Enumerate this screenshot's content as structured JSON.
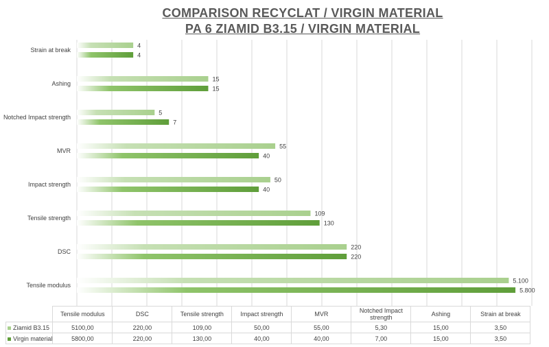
{
  "title": [
    "COMPARISON RECYCLAT / VIRGIN MATERIAL",
    "PA 6 ZIAMID B3.15 / VIRGIN MATERIAL"
  ],
  "chart_data": {
    "type": "bar",
    "orientation": "horizontal",
    "x_scale": "log",
    "grid": "vertical gridlines",
    "legend": "data table below chart",
    "categories": [
      "Tensile modulus",
      "DSC",
      "Tensile strength",
      "Impact strength",
      "MVR",
      "Notched Impact strength",
      "Ashing",
      "Strain at break"
    ],
    "series": [
      {
        "name": "Ziamid B3.15",
        "color": "#a9d08e",
        "values": [
          5100,
          220,
          109,
          50,
          55,
          5.3,
          15,
          3.5
        ],
        "labels": [
          "5.100",
          "220",
          "109",
          "50",
          "55",
          "5",
          "15",
          "4"
        ],
        "table": [
          "5100,00",
          "220,00",
          "109,00",
          "50,00",
          "55,00",
          "5,30",
          "15,00",
          "3,50"
        ]
      },
      {
        "name": "Virgin material",
        "color": "#5f9e3a",
        "values": [
          5800,
          220,
          130,
          40,
          40,
          7,
          15,
          3.5
        ],
        "labels": [
          "5.800",
          "220",
          "130",
          "40",
          "40",
          "7",
          "15",
          "4"
        ],
        "table": [
          "5800,00",
          "220,00",
          "130,00",
          "40,00",
          "40,00",
          "7,00",
          "15,00",
          "3,50"
        ]
      }
    ]
  }
}
